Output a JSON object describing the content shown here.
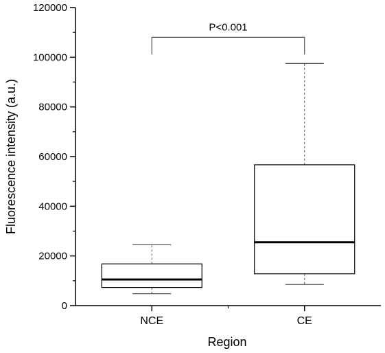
{
  "chart_data": {
    "type": "box",
    "title": "",
    "xlabel": "Region",
    "ylabel": "Fluorescence intensity (a.u.)",
    "ylim": [
      0,
      120000
    ],
    "yticks": [
      0,
      20000,
      40000,
      60000,
      80000,
      100000,
      120000
    ],
    "y_minor_step": 10000,
    "grid": false,
    "categories": [
      "NCE",
      "CE"
    ],
    "boxes": [
      {
        "category": "NCE",
        "whisker_low": 4800,
        "q1": 7300,
        "median": 10500,
        "q3": 16800,
        "whisker_high": 24500
      },
      {
        "category": "CE",
        "whisker_low": 8500,
        "q1": 12800,
        "median": 25500,
        "q3": 56700,
        "whisker_high": 97500
      }
    ],
    "annotations": [
      {
        "text": "P<0.001",
        "from": "NCE",
        "to": "CE",
        "y": 108000
      }
    ],
    "colors": {
      "box_fill": "#ffffff",
      "line": "#000000",
      "whisker": "#555555"
    }
  }
}
